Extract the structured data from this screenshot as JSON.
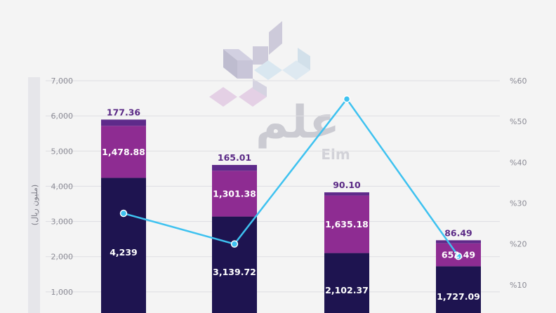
{
  "colors": {
    "background": "#f4f4f4",
    "grid": "#dedee2",
    "axis_band": "#e6e6ea",
    "segment_bottom": "#1e1450",
    "segment_middle": "#8e2c92",
    "segment_top": "#5e2a8a",
    "line": "#3ec2f0",
    "top_label": "#5b2a86"
  },
  "logo": {
    "arabic_text": "علم",
    "latin_text": "Elm"
  },
  "chart_data": {
    "type": "bar",
    "stacked": true,
    "categories": [
      "",
      "",
      "",
      ""
    ],
    "series": [
      {
        "values": [
          4239,
          3139.72,
          2102.37,
          1727.09
        ],
        "labels": [
          "4,239",
          "3,139.72",
          "2,102.37",
          "1,727.09"
        ]
      },
      {
        "values": [
          1478.88,
          1301.38,
          1635.18,
          652.49
        ],
        "labels": [
          "1,478.88",
          "1,301.38",
          "1,635.18",
          "652.49"
        ]
      },
      {
        "values": [
          177.36,
          165.01,
          90.1,
          86.49
        ],
        "labels": [
          "177.36",
          "165.01",
          "90.10",
          "86.49"
        ]
      }
    ],
    "line_series": {
      "axis": "right",
      "values": [
        27.5,
        20,
        55.5,
        17
      ]
    },
    "ylabel": "(مليون ريال)",
    "ylim": [
      0,
      7000
    ],
    "y_ticks": [
      {
        "value": 1000,
        "label": "1,000"
      },
      {
        "value": 2000,
        "label": "2,000"
      },
      {
        "value": 3000,
        "label": "3,000"
      },
      {
        "value": 4000,
        "label": "4,000"
      },
      {
        "value": 5000,
        "label": "5,000"
      },
      {
        "value": 6000,
        "label": "6,000"
      },
      {
        "value": 7000,
        "label": "7,000"
      }
    ],
    "y2lim": [
      0,
      60
    ],
    "y2_ticks": [
      {
        "value": 10,
        "label": "%10"
      },
      {
        "value": 20,
        "label": "%20"
      },
      {
        "value": 30,
        "label": "%30"
      },
      {
        "value": 40,
        "label": "%40"
      },
      {
        "value": 50,
        "label": "%50"
      },
      {
        "value": 60,
        "label": "%60"
      }
    ],
    "grid": true,
    "legend": "none"
  }
}
